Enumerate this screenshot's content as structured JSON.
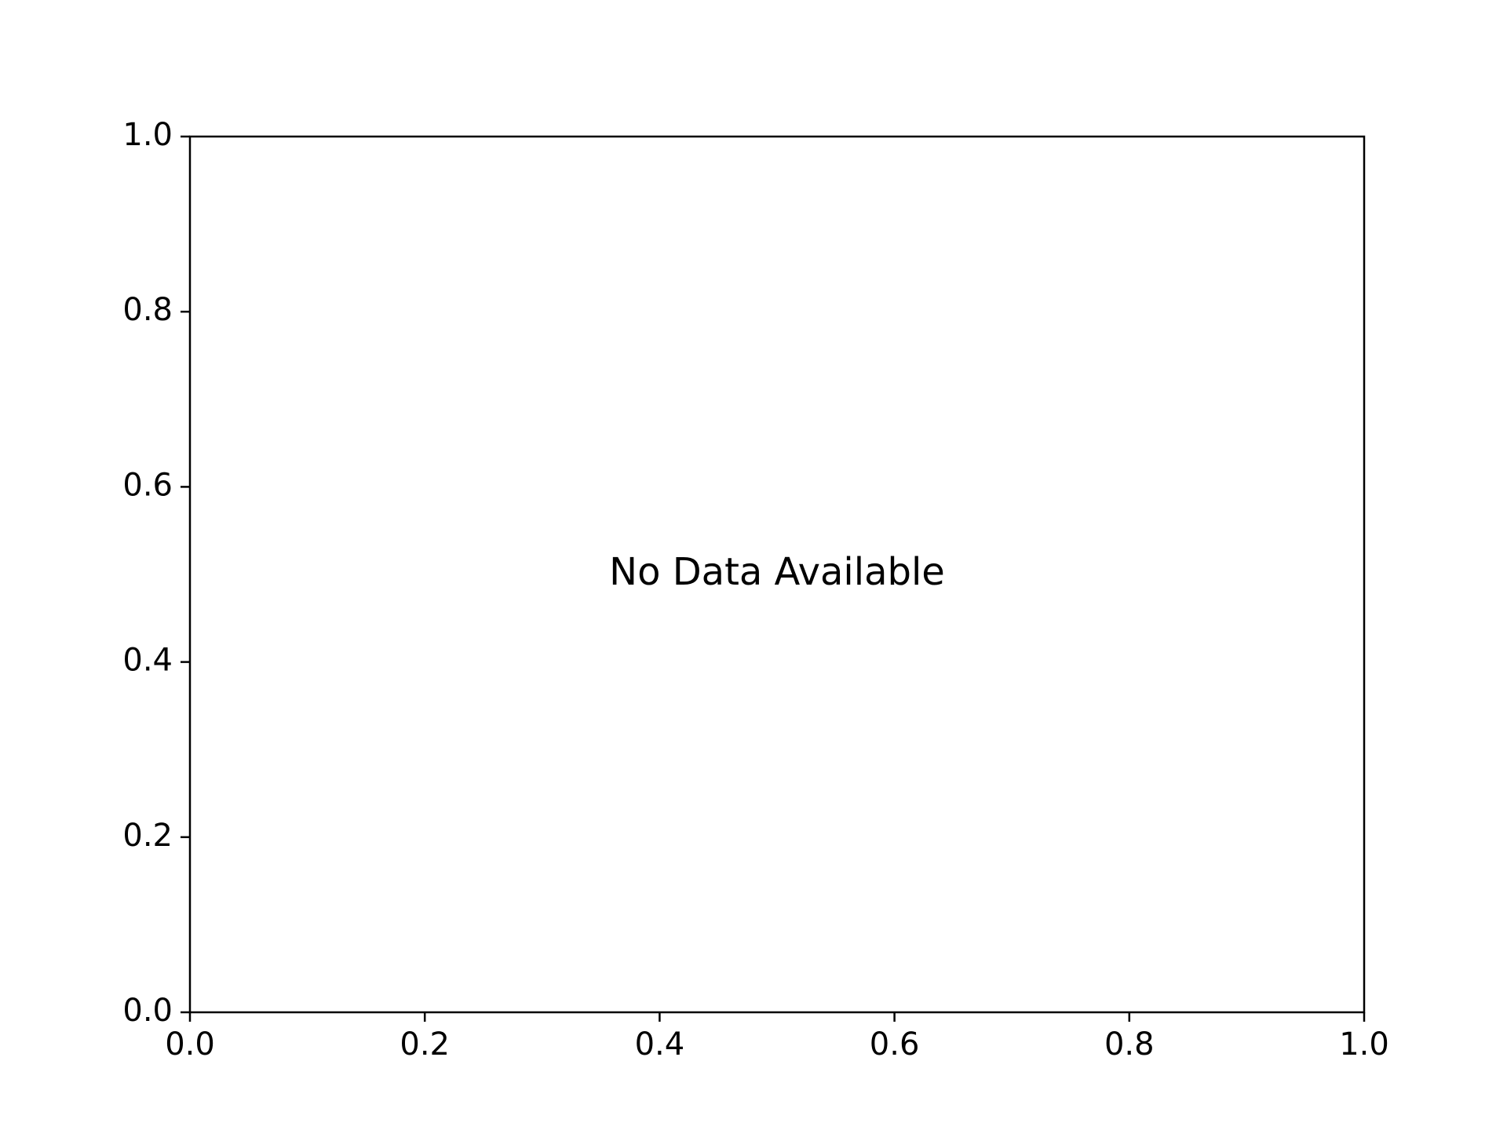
{
  "chart_data": {
    "type": "scatter",
    "title": "",
    "xlabel": "",
    "ylabel": "",
    "xlim": [
      0.0,
      1.0
    ],
    "ylim": [
      0.0,
      1.0
    ],
    "x_ticks": [
      "0.0",
      "0.2",
      "0.4",
      "0.6",
      "0.8",
      "1.0"
    ],
    "y_ticks": [
      "0.0",
      "0.2",
      "0.4",
      "0.6",
      "0.8",
      "1.0"
    ],
    "grid": false,
    "series": [],
    "annotation": "No Data Available",
    "colors": {
      "axes": "#000000",
      "background": "#ffffff",
      "text": "#000000"
    }
  }
}
